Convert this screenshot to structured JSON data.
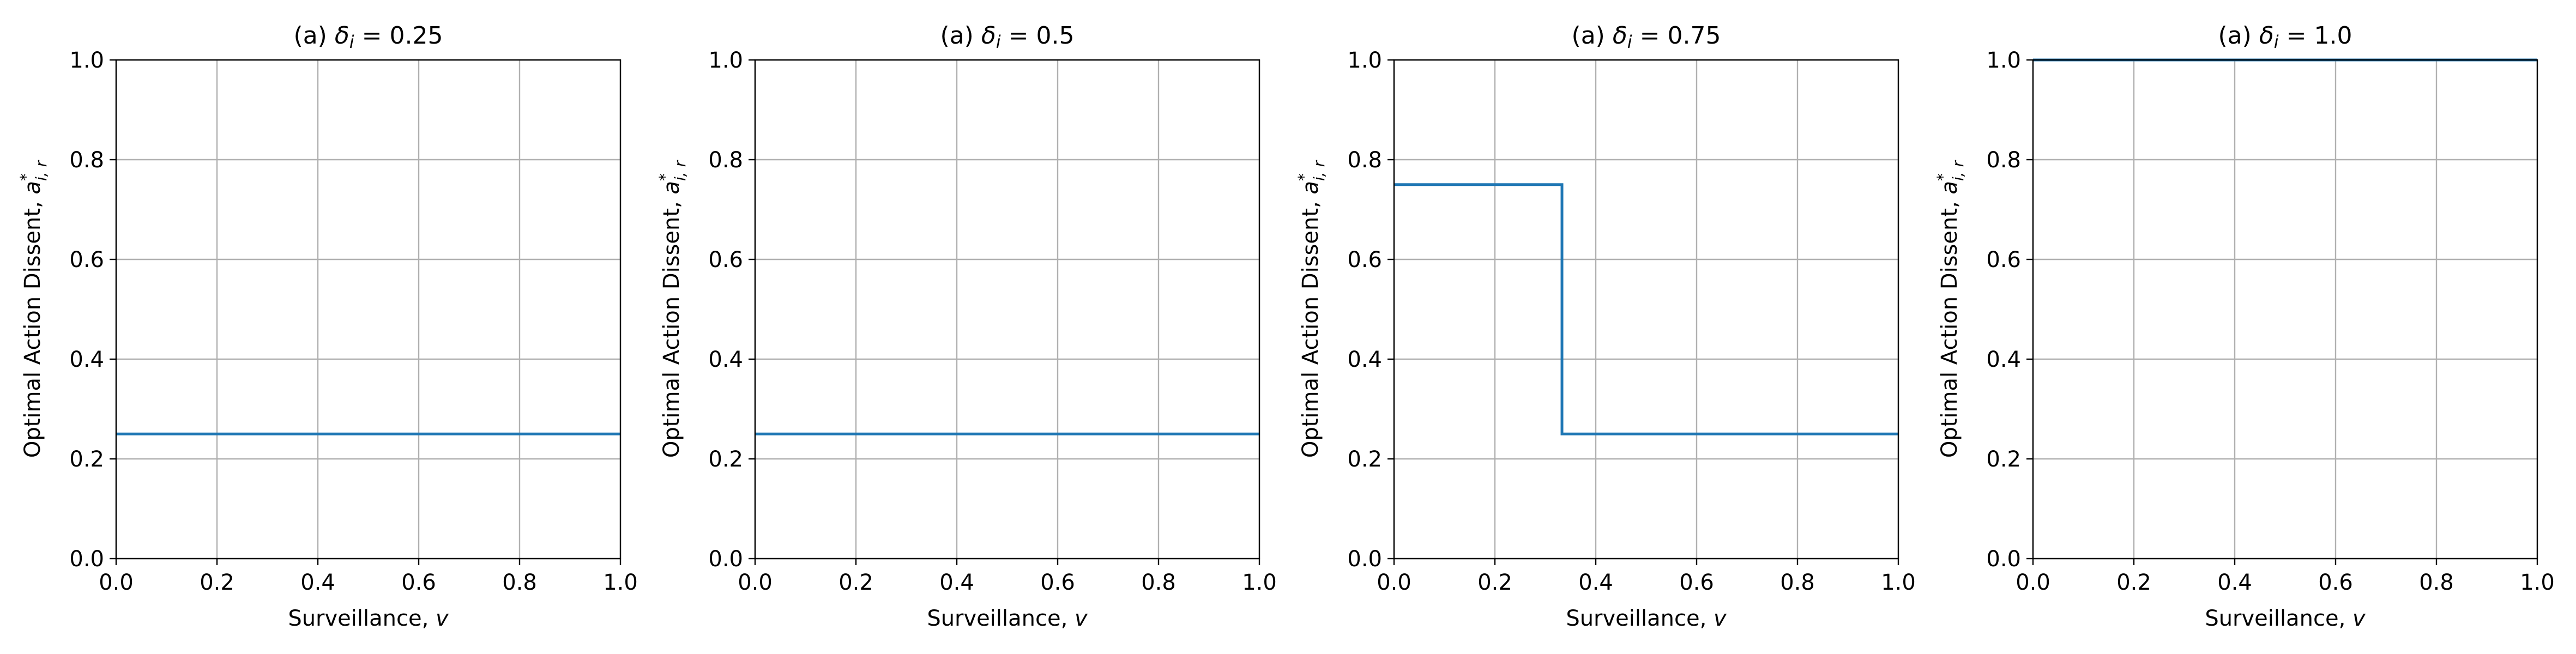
{
  "chart_data": [
    {
      "type": "line",
      "title_prefix": "(a)",
      "title_symbol": "δ",
      "title_subscript": "i",
      "title_value": "= 0.25",
      "xlabel_text": "Surveillance,",
      "xlabel_var": "v",
      "ylabel_text": "Optimal Action Dissent,",
      "ylabel_var": "a",
      "ylabel_sup": "*",
      "ylabel_sub": "i, r",
      "xlim": [
        0.0,
        1.0
      ],
      "ylim": [
        0.0,
        1.0
      ],
      "x_ticks": [
        "0.0",
        "0.2",
        "0.4",
        "0.6",
        "0.8",
        "1.0"
      ],
      "y_ticks": [
        "0.0",
        "0.2",
        "0.4",
        "0.6",
        "0.8",
        "1.0"
      ],
      "grid": true,
      "line_color": "#1f77b4",
      "series": [
        {
          "x": [
            0.0,
            1.0
          ],
          "y": [
            0.25,
            0.25
          ]
        }
      ]
    },
    {
      "type": "line",
      "title_prefix": "(a)",
      "title_symbol": "δ",
      "title_subscript": "i",
      "title_value": "= 0.5",
      "xlabel_text": "Surveillance,",
      "xlabel_var": "v",
      "ylabel_text": "Optimal Action Dissent,",
      "ylabel_var": "a",
      "ylabel_sup": "*",
      "ylabel_sub": "i, r",
      "xlim": [
        0.0,
        1.0
      ],
      "ylim": [
        0.0,
        1.0
      ],
      "x_ticks": [
        "0.0",
        "0.2",
        "0.4",
        "0.6",
        "0.8",
        "1.0"
      ],
      "y_ticks": [
        "0.0",
        "0.2",
        "0.4",
        "0.6",
        "0.8",
        "1.0"
      ],
      "grid": true,
      "line_color": "#1f77b4",
      "series": [
        {
          "x": [
            0.0,
            1.0
          ],
          "y": [
            0.25,
            0.25
          ]
        }
      ]
    },
    {
      "type": "line",
      "title_prefix": "(a)",
      "title_symbol": "δ",
      "title_subscript": "i",
      "title_value": "= 0.75",
      "xlabel_text": "Surveillance,",
      "xlabel_var": "v",
      "ylabel_text": "Optimal Action Dissent,",
      "ylabel_var": "a",
      "ylabel_sup": "*",
      "ylabel_sub": "i, r",
      "xlim": [
        0.0,
        1.0
      ],
      "ylim": [
        0.0,
        1.0
      ],
      "x_ticks": [
        "0.0",
        "0.2",
        "0.4",
        "0.6",
        "0.8",
        "1.0"
      ],
      "y_ticks": [
        "0.0",
        "0.2",
        "0.4",
        "0.6",
        "0.8",
        "1.0"
      ],
      "grid": true,
      "line_color": "#1f77b4",
      "series": [
        {
          "x": [
            0.0,
            0.333,
            0.333,
            1.0
          ],
          "y": [
            0.75,
            0.75,
            0.25,
            0.25
          ]
        }
      ]
    },
    {
      "type": "line",
      "title_prefix": "(a)",
      "title_symbol": "δ",
      "title_subscript": "i",
      "title_value": "= 1.0",
      "xlabel_text": "Surveillance,",
      "xlabel_var": "v",
      "ylabel_text": "Optimal Action Dissent,",
      "ylabel_var": "a",
      "ylabel_sup": "*",
      "ylabel_sub": "i, r",
      "xlim": [
        0.0,
        1.0
      ],
      "ylim": [
        0.0,
        1.0
      ],
      "x_ticks": [
        "0.0",
        "0.2",
        "0.4",
        "0.6",
        "0.8",
        "1.0"
      ],
      "y_ticks": [
        "0.0",
        "0.2",
        "0.4",
        "0.6",
        "0.8",
        "1.0"
      ],
      "grid": true,
      "line_color": "#1f77b4",
      "series": [
        {
          "x": [
            0.0,
            1.0
          ],
          "y": [
            1.0,
            1.0
          ]
        }
      ]
    }
  ]
}
